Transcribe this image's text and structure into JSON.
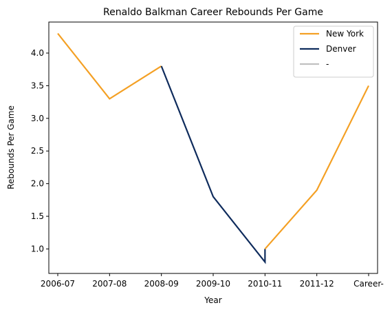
{
  "chart_data": {
    "type": "line",
    "title": "Renaldo Balkman Career Rebounds Per Game",
    "xlabel": "Year",
    "ylabel": "Rebounds Per Game",
    "categories": [
      "2006-07",
      "2007-08",
      "2008-09",
      "2009-10",
      "2010-11",
      "2011-12",
      "Career-"
    ],
    "yticks": [
      "1.0",
      "1.5",
      "2.0",
      "2.5",
      "3.0",
      "3.5",
      "4.0"
    ],
    "ylim": [
      0.625,
      4.475
    ],
    "grid": false,
    "legend_position": "top-right",
    "series": [
      {
        "name": "New York",
        "color": "#f4a024",
        "points": [
          {
            "x": "2006-07",
            "y": 4.3
          },
          {
            "x": "2007-08",
            "y": 3.3
          },
          {
            "x": "2008-09",
            "y": 3.8
          }
        ]
      },
      {
        "name": "Denver",
        "color": "#0e2b5c",
        "points": [
          {
            "x": "2008-09",
            "y": 3.8
          },
          {
            "x": "2009-10",
            "y": 1.8
          },
          {
            "x": "2010-11",
            "y": 0.8
          },
          {
            "x": "2010-11",
            "y": 1.0
          }
        ]
      },
      {
        "name": "New York",
        "color": "#f4a024",
        "legend": false,
        "points": [
          {
            "x": "2010-11",
            "y": 1.0
          },
          {
            "x": "2011-12",
            "y": 1.9
          },
          {
            "x": "Career-",
            "y": 3.5
          }
        ]
      },
      {
        "name": "-",
        "color": "#c0c0c0",
        "points": []
      }
    ]
  }
}
